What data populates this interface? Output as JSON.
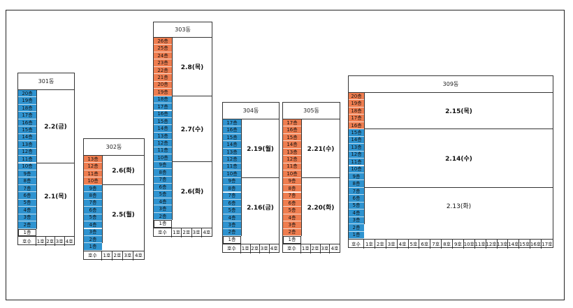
{
  "header_labels": {
    "type": "호수",
    "units": [
      "1호",
      "2호",
      "3호",
      "4호",
      "5호",
      "6호",
      "7호",
      "8호",
      "9호",
      "10호",
      "11호",
      "12호",
      "13호",
      "14호",
      "15호",
      "16호",
      "17호"
    ]
  },
  "buildings": [
    {
      "name": "301동",
      "units": 4,
      "floors": [
        {
          "label": "20층",
          "color": "blue"
        },
        {
          "label": "19층",
          "color": "blue"
        },
        {
          "label": "18층",
          "color": "blue"
        },
        {
          "label": "17층",
          "color": "blue"
        },
        {
          "label": "16층",
          "color": "blue"
        },
        {
          "label": "15층",
          "color": "blue"
        },
        {
          "label": "14층",
          "color": "blue"
        },
        {
          "label": "13층",
          "color": "blue"
        },
        {
          "label": "12층",
          "color": "blue"
        },
        {
          "label": "11층",
          "color": "blue"
        },
        {
          "label": "10층",
          "color": "blue"
        },
        {
          "label": "9층",
          "color": "blue"
        },
        {
          "label": "8층",
          "color": "blue"
        },
        {
          "label": "7층",
          "color": "blue"
        },
        {
          "label": "6층",
          "color": "blue"
        },
        {
          "label": "5층",
          "color": "blue"
        },
        {
          "label": "4층",
          "color": "blue"
        },
        {
          "label": "3층",
          "color": "blue"
        },
        {
          "label": "2층",
          "color": "blue"
        },
        {
          "label": "1층",
          "color": "white"
        }
      ],
      "groups": [
        {
          "label": "2.2(금)",
          "from": 0,
          "to": 10
        },
        {
          "label": "2.1(목)",
          "from": 10,
          "to": 19
        }
      ]
    },
    {
      "name": "302동",
      "units": 4,
      "floors": [
        {
          "label": "13층",
          "color": "orange"
        },
        {
          "label": "12층",
          "color": "orange"
        },
        {
          "label": "11층",
          "color": "orange"
        },
        {
          "label": "10층",
          "color": "orange"
        },
        {
          "label": "9층",
          "color": "blue"
        },
        {
          "label": "8층",
          "color": "blue"
        },
        {
          "label": "7층",
          "color": "blue"
        },
        {
          "label": "6층",
          "color": "blue"
        },
        {
          "label": "5층",
          "color": "blue"
        },
        {
          "label": "4층",
          "color": "blue"
        },
        {
          "label": "3층",
          "color": "blue"
        },
        {
          "label": "2층",
          "color": "blue"
        },
        {
          "label": "1층",
          "color": "blue"
        }
      ],
      "groups": [
        {
          "label": "2.6(화)",
          "from": 0,
          "to": 4
        },
        {
          "label": "2.5(월)",
          "from": 4,
          "to": 12
        }
      ]
    },
    {
      "name": "303동",
      "units": 4,
      "floors": [
        {
          "label": "26층",
          "color": "orange"
        },
        {
          "label": "25층",
          "color": "orange"
        },
        {
          "label": "24층",
          "color": "orange"
        },
        {
          "label": "23층",
          "color": "orange"
        },
        {
          "label": "22층",
          "color": "orange"
        },
        {
          "label": "21층",
          "color": "orange"
        },
        {
          "label": "20층",
          "color": "orange"
        },
        {
          "label": "19층",
          "color": "orange"
        },
        {
          "label": "18층",
          "color": "blue"
        },
        {
          "label": "17층",
          "color": "blue"
        },
        {
          "label": "16층",
          "color": "blue"
        },
        {
          "label": "15층",
          "color": "blue"
        },
        {
          "label": "14층",
          "color": "blue"
        },
        {
          "label": "13층",
          "color": "blue"
        },
        {
          "label": "12층",
          "color": "blue"
        },
        {
          "label": "11층",
          "color": "blue"
        },
        {
          "label": "10층",
          "color": "blue"
        },
        {
          "label": "9층",
          "color": "blue"
        },
        {
          "label": "8층",
          "color": "blue"
        },
        {
          "label": "7층",
          "color": "blue"
        },
        {
          "label": "6층",
          "color": "blue"
        },
        {
          "label": "5층",
          "color": "blue"
        },
        {
          "label": "4층",
          "color": "blue"
        },
        {
          "label": "3층",
          "color": "blue"
        },
        {
          "label": "2층",
          "color": "blue"
        },
        {
          "label": "1층",
          "color": "white"
        }
      ],
      "groups": [
        {
          "label": "2.8(목)",
          "from": 0,
          "to": 8
        },
        {
          "label": "2.7(수)",
          "from": 8,
          "to": 17
        },
        {
          "label": "2.6(화)",
          "from": 17,
          "to": 25
        }
      ]
    },
    {
      "name": "304동",
      "units": 4,
      "floors": [
        {
          "label": "17층",
          "color": "blue"
        },
        {
          "label": "16층",
          "color": "blue"
        },
        {
          "label": "15층",
          "color": "blue"
        },
        {
          "label": "14층",
          "color": "blue"
        },
        {
          "label": "13층",
          "color": "blue"
        },
        {
          "label": "12층",
          "color": "blue"
        },
        {
          "label": "11층",
          "color": "blue"
        },
        {
          "label": "10층",
          "color": "blue"
        },
        {
          "label": "9층",
          "color": "blue"
        },
        {
          "label": "8층",
          "color": "blue"
        },
        {
          "label": "7층",
          "color": "blue"
        },
        {
          "label": "6층",
          "color": "blue"
        },
        {
          "label": "5층",
          "color": "blue"
        },
        {
          "label": "4층",
          "color": "blue"
        },
        {
          "label": "3층",
          "color": "blue"
        },
        {
          "label": "2층",
          "color": "blue"
        },
        {
          "label": "1층",
          "color": "white"
        }
      ],
      "groups": [
        {
          "label": "2.19(월)",
          "from": 0,
          "to": 8
        },
        {
          "label": "2.16(금)",
          "from": 8,
          "to": 16
        }
      ]
    },
    {
      "name": "305동",
      "units": 4,
      "floors": [
        {
          "label": "17층",
          "color": "orange"
        },
        {
          "label": "16층",
          "color": "orange"
        },
        {
          "label": "15층",
          "color": "orange"
        },
        {
          "label": "14층",
          "color": "orange"
        },
        {
          "label": "13층",
          "color": "orange"
        },
        {
          "label": "12층",
          "color": "orange"
        },
        {
          "label": "11층",
          "color": "orange"
        },
        {
          "label": "10층",
          "color": "orange"
        },
        {
          "label": "9층",
          "color": "orange"
        },
        {
          "label": "8층",
          "color": "orange"
        },
        {
          "label": "7층",
          "color": "orange"
        },
        {
          "label": "6층",
          "color": "orange"
        },
        {
          "label": "5층",
          "color": "orange"
        },
        {
          "label": "4층",
          "color": "orange"
        },
        {
          "label": "3층",
          "color": "orange"
        },
        {
          "label": "2층",
          "color": "orange"
        },
        {
          "label": "1층",
          "color": "white"
        }
      ],
      "groups": [
        {
          "label": "2.21(수)",
          "from": 0,
          "to": 8
        },
        {
          "label": "2.20(화)",
          "from": 8,
          "to": 16
        }
      ]
    },
    {
      "name": "309동",
      "units": 17,
      "floors": [
        {
          "label": "20층",
          "color": "orange"
        },
        {
          "label": "19층",
          "color": "orange"
        },
        {
          "label": "18층",
          "color": "orange"
        },
        {
          "label": "17층",
          "color": "orange"
        },
        {
          "label": "16층",
          "color": "orange"
        },
        {
          "label": "15층",
          "color": "blue"
        },
        {
          "label": "14층",
          "color": "blue"
        },
        {
          "label": "13층",
          "color": "blue"
        },
        {
          "label": "12층",
          "color": "blue"
        },
        {
          "label": "11층",
          "color": "blue"
        },
        {
          "label": "10층",
          "color": "blue"
        },
        {
          "label": "9층",
          "color": "blue"
        },
        {
          "label": "8층",
          "color": "blue"
        },
        {
          "label": "7층",
          "color": "blue"
        },
        {
          "label": "6층",
          "color": "blue"
        },
        {
          "label": "5층",
          "color": "blue"
        },
        {
          "label": "4층",
          "color": "blue"
        },
        {
          "label": "3층",
          "color": "blue"
        },
        {
          "label": "2층",
          "color": "blue"
        },
        {
          "label": "1층",
          "color": "blue"
        }
      ],
      "groups": [
        {
          "label": "2.15(목)",
          "from": 0,
          "to": 5
        },
        {
          "label": "2.14(수)",
          "from": 5,
          "to": 13
        },
        {
          "label": "2.13(화)",
          "from": 13,
          "to": 18,
          "light": true
        }
      ]
    }
  ],
  "colors": {
    "blue": "#2e93d0",
    "orange": "#ef7d4f"
  }
}
